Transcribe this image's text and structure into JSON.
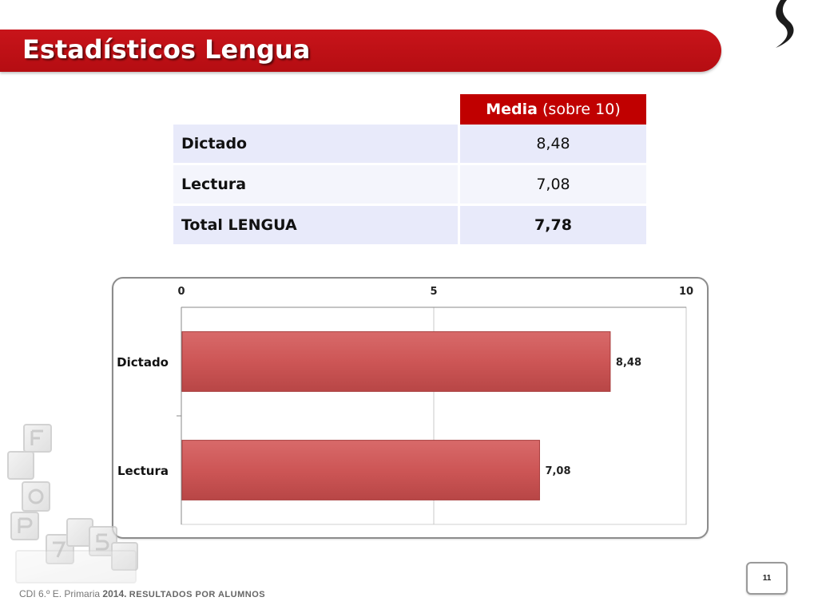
{
  "slide": {
    "title": "Estadísticos Lengua",
    "page_number": "11",
    "footer": {
      "prefix": "CDI 6.º E. Primaria",
      "year": "2014.",
      "caption": "RESULTADOS POR ALUMNOS"
    }
  },
  "table": {
    "header_bold": "Media",
    "header_rest": " (sobre 10)",
    "rows": [
      {
        "label": "Dictado",
        "value": "8,48"
      },
      {
        "label": "Lectura",
        "value": "7,08"
      },
      {
        "label": "Total LENGUA",
        "value": "7,78"
      }
    ]
  },
  "chart_data": {
    "type": "bar",
    "orientation": "horizontal",
    "categories": [
      "Dictado",
      "Lectura"
    ],
    "values": [
      8.48,
      7.08
    ],
    "data_labels": [
      "8,48",
      "7,08"
    ],
    "xlim": [
      0,
      10
    ],
    "x_ticks": [
      0,
      5,
      10
    ],
    "x_tick_labels": [
      "0",
      "5",
      "10"
    ],
    "axis_position": "top",
    "grid": true,
    "bar_color": "#cd5656",
    "title": "",
    "xlabel": "",
    "ylabel": ""
  },
  "colors": {
    "accent": "#c00000",
    "row_bg": "#e8eafa"
  }
}
